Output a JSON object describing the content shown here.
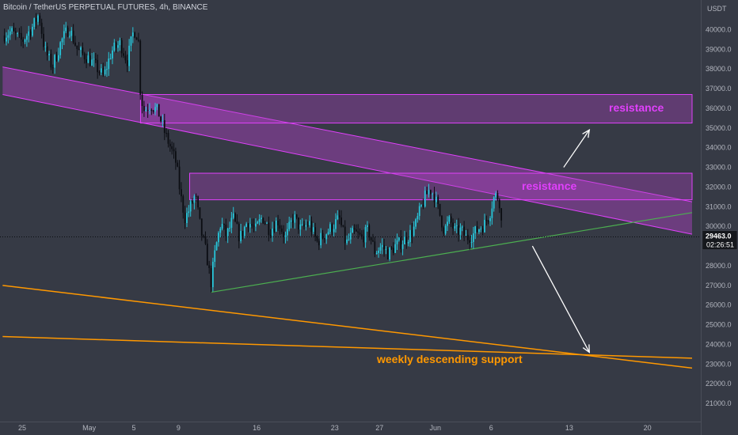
{
  "chart_data": {
    "type": "candlestick",
    "title": "Bitcoin / TetherUS PERPETUAL FUTURES, 4h, BINANCE",
    "currency": "USDT",
    "y_ticks": [
      21000,
      22000,
      23000,
      24000,
      25000,
      26000,
      27000,
      28000,
      29000,
      30000,
      31000,
      32000,
      33000,
      34000,
      35000,
      36000,
      37000,
      38000,
      39000,
      40000
    ],
    "y_tick_labels": [
      "21000.0",
      "22000.0",
      "23000.0",
      "24000.0",
      "25000.0",
      "26000.0",
      "27000.0",
      "28000.0",
      "29000.0",
      "30000.0",
      "31000.0",
      "32000.0",
      "33000.0",
      "34000.0",
      "35000.0",
      "36000.0",
      "37000.0",
      "38000.0",
      "39000.0",
      "40000.0"
    ],
    "ylim": [
      20300,
      41300
    ],
    "x_ticks": [
      {
        "label": "25",
        "day": 0
      },
      {
        "label": "May",
        "day": 6
      },
      {
        "label": "5",
        "day": 10
      },
      {
        "label": "9",
        "day": 14
      },
      {
        "label": "16",
        "day": 21
      },
      {
        "label": "23",
        "day": 28
      },
      {
        "label": "27",
        "day": 32
      },
      {
        "label": "Jun",
        "day": 37
      },
      {
        "label": "6",
        "day": 42
      },
      {
        "label": "13",
        "day": 49
      },
      {
        "label": "20",
        "day": 56
      }
    ],
    "last_price": "29463.0",
    "countdown": "02:26:51",
    "grid": false,
    "annotations": {
      "resistance_upper": "resistance",
      "resistance_lower": "resistance",
      "support": "weekly descending support"
    },
    "resistance_zones": [
      {
        "day_start": 10.6,
        "day_end": 60,
        "low": 35250,
        "high": 36700
      },
      {
        "day_start": 15.0,
        "day_end": 60,
        "low": 31350,
        "high": 32700
      }
    ],
    "descending_channel": {
      "upper": {
        "day_start": -1.75,
        "price_start": 38100,
        "day_end": 60,
        "price_end": 31250
      },
      "lower": {
        "day_start": -1.75,
        "price_start": 36700,
        "day_end": 60,
        "price_end": 29600
      }
    },
    "rising_support": {
      "day_start": 16.9,
      "price_start": 26650,
      "day_end": 60,
      "price_end": 30700
    },
    "weekly_support_lines": [
      {
        "day_start": -1.75,
        "price_start": 27000,
        "day_end": 60,
        "price_end": 22800
      },
      {
        "day_start": -1.75,
        "price_start": 24400,
        "day_end": 60,
        "price_end": 23300
      }
    ],
    "projection_arrows": [
      {
        "from_day": 48.5,
        "from_price": 33000,
        "to_day": 50.8,
        "to_price": 34900
      },
      {
        "from_day": 45.7,
        "from_price": 29000,
        "to_day": 50.8,
        "to_price": 23600
      }
    ],
    "price_path": [
      [
        -1.75,
        39700
      ],
      [
        -1,
        39900
      ],
      [
        0,
        39400
      ],
      [
        1,
        40200
      ],
      [
        1.5,
        40800
      ],
      [
        2,
        39000
      ],
      [
        2.7,
        38100
      ],
      [
        3.5,
        39400
      ],
      [
        4.2,
        40100
      ],
      [
        5,
        38900
      ],
      [
        5.8,
        38600
      ],
      [
        6.5,
        38200
      ],
      [
        7.3,
        37600
      ],
      [
        8,
        38900
      ],
      [
        8.8,
        39300
      ],
      [
        9.4,
        38400
      ],
      [
        10,
        40000
      ],
      [
        10.4,
        39600
      ],
      [
        10.6,
        36700
      ],
      [
        10.9,
        35900
      ],
      [
        11.5,
        36200
      ],
      [
        12.2,
        35800
      ],
      [
        12.8,
        34700
      ],
      [
        13.3,
        34000
      ],
      [
        13.8,
        33200
      ],
      [
        14.2,
        31500
      ],
      [
        14.6,
        30400
      ],
      [
        15,
        30900
      ],
      [
        15.5,
        31600
      ],
      [
        16,
        29800
      ],
      [
        16.5,
        28600
      ],
      [
        16.9,
        27100
      ],
      [
        17.3,
        28800
      ],
      [
        17.8,
        30200
      ],
      [
        18.3,
        29500
      ],
      [
        18.9,
        30400
      ],
      [
        19.5,
        29400
      ],
      [
        20.2,
        30300
      ],
      [
        20.9,
        29800
      ],
      [
        21.5,
        30500
      ],
      [
        22.2,
        29800
      ],
      [
        22.9,
        30300
      ],
      [
        23.6,
        29400
      ],
      [
        24.3,
        30500
      ],
      [
        25,
        29800
      ],
      [
        25.7,
        30200
      ],
      [
        26.4,
        29200
      ],
      [
        27.1,
        29600
      ],
      [
        27.8,
        30000
      ],
      [
        28.4,
        30400
      ],
      [
        29,
        29100
      ],
      [
        29.7,
        29700
      ],
      [
        30.4,
        29400
      ],
      [
        31,
        29800
      ],
      [
        31.6,
        28700
      ],
      [
        32.2,
        29000
      ],
      [
        32.8,
        28600
      ],
      [
        33.4,
        29000
      ],
      [
        34,
        29200
      ],
      [
        34.6,
        29500
      ],
      [
        35.2,
        30000
      ],
      [
        35.7,
        30900
      ],
      [
        36.1,
        31500
      ],
      [
        36.5,
        31900
      ],
      [
        36.9,
        31600
      ],
      [
        37.4,
        30600
      ],
      [
        37.8,
        29800
      ],
      [
        38.3,
        30300
      ],
      [
        38.8,
        29700
      ],
      [
        39.3,
        29800
      ],
      [
        39.8,
        29400
      ],
      [
        40.4,
        29600
      ],
      [
        40.9,
        29900
      ],
      [
        41.4,
        30100
      ],
      [
        41.9,
        30700
      ],
      [
        42.2,
        31400
      ],
      [
        42.5,
        31600
      ],
      [
        42.8,
        31200
      ],
      [
        43.0,
        29463
      ]
    ]
  }
}
